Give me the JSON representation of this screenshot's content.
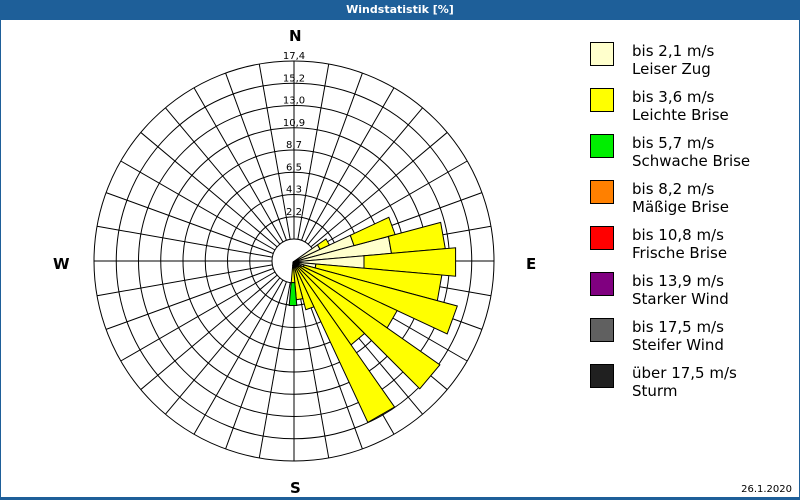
{
  "window": {
    "title": "Windstatistik [%]"
  },
  "compass": {
    "n": "N",
    "e": "E",
    "s": "S",
    "w": "W"
  },
  "rings": [
    "2,2",
    "4,3",
    "6,5",
    "8,7",
    "10,9",
    "13,0",
    "15,2",
    "17,4"
  ],
  "legend": [
    {
      "range": "bis 2,1 m/s",
      "name": "Leiser Zug",
      "color": "#ffffcc"
    },
    {
      "range": "bis 3,6 m/s",
      "name": "Leichte Brise",
      "color": "#ffff00"
    },
    {
      "range": "bis 5,7 m/s",
      "name": "Schwache Brise",
      "color": "#00ee00"
    },
    {
      "range": "bis 8,2 m/s",
      "name": "Mäßige Brise",
      "color": "#ff8000"
    },
    {
      "range": "bis 10,8 m/s",
      "name": "Frische Brise",
      "color": "#ff0000"
    },
    {
      "range": "bis 13,9 m/s",
      "name": "Starker Wind",
      "color": "#800080"
    },
    {
      "range": "bis 17,5 m/s",
      "name": "Steifer Wind",
      "color": "#606060"
    },
    {
      "range": "über 17,5 m/s",
      "name": "Sturm",
      "color": "#202020"
    }
  ],
  "date": "26.1.2020",
  "chart_data": {
    "type": "wind-rose",
    "title": "Windstatistik [%]",
    "unit": "%",
    "radial_ticks": [
      2.2,
      4.3,
      6.5,
      8.7,
      10.9,
      13.0,
      15.2,
      17.4
    ],
    "rmax": 17.4,
    "sector_width_deg": 10,
    "series": [
      {
        "name": "bis 2,1 m/s (Leiser Zug)",
        "color": "#ffffcc",
        "directions": [
          60,
          70,
          80,
          90,
          100,
          110,
          120,
          130,
          140,
          150,
          160,
          170,
          180
        ],
        "values": [
          2.6,
          5.5,
          8.6,
          6.2,
          2.0,
          1.0,
          0.8,
          0.6,
          0.5,
          0.4,
          0.3,
          0.3,
          0.3
        ]
      },
      {
        "name": "bis 3,6 m/s (Leichte Brise)",
        "color": "#ffff00",
        "directions": [
          60,
          70,
          80,
          90,
          100,
          110,
          120,
          130,
          140,
          150,
          160,
          170,
          180
        ],
        "values": [
          0.9,
          3.7,
          4.7,
          8.0,
          11.0,
          13.8,
          9.2,
          15.0,
          8.3,
          15.0,
          4.0,
          3.0,
          1.5
        ]
      },
      {
        "name": "bis 5,7 m/s (Schwache Brise)",
        "color": "#00ee00",
        "directions": [
          180
        ],
        "values": [
          2.0
        ]
      }
    ],
    "legend_position": "right"
  }
}
